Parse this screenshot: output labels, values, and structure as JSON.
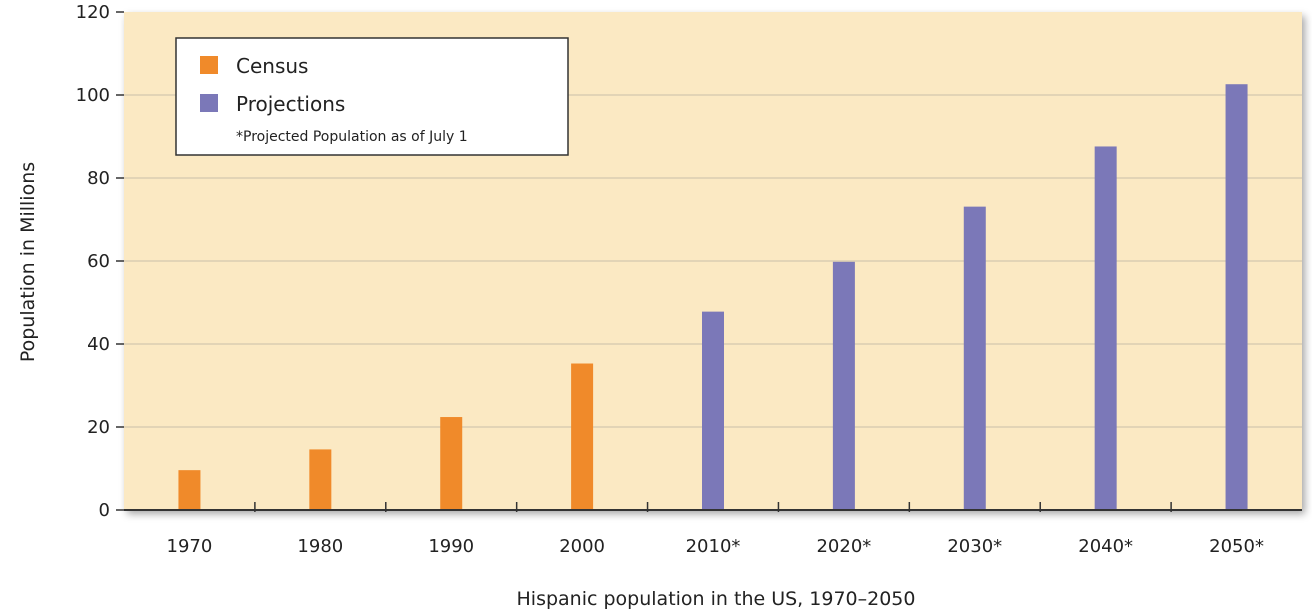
{
  "chart_data": {
    "type": "bar",
    "categories": [
      "1970",
      "1980",
      "1990",
      "2000",
      "2010*",
      "2020*",
      "2030*",
      "2040*",
      "2050*"
    ],
    "series": [
      {
        "name": "Census",
        "values": [
          9.6,
          14.6,
          22.4,
          35.3,
          null,
          null,
          null,
          null,
          null
        ]
      },
      {
        "name": "Projections",
        "values": [
          null,
          null,
          null,
          null,
          47.8,
          59.8,
          73.1,
          87.6,
          102.6
        ]
      }
    ],
    "xlabel": "Hispanic population in the US, 1970–2050",
    "ylabel": "Population in Millions",
    "ylim": [
      0,
      120
    ],
    "yticks": [
      0,
      20,
      40,
      60,
      80,
      100,
      120
    ],
    "legend_note": "*Projected Population as of July 1",
    "legend_position": "top-left",
    "grid": true,
    "colors": {
      "Census": "#f08a2a",
      "Projections": "#7b78b8",
      "plot_background": "#fbe9c3",
      "grid": "#c9bfa8"
    }
  }
}
